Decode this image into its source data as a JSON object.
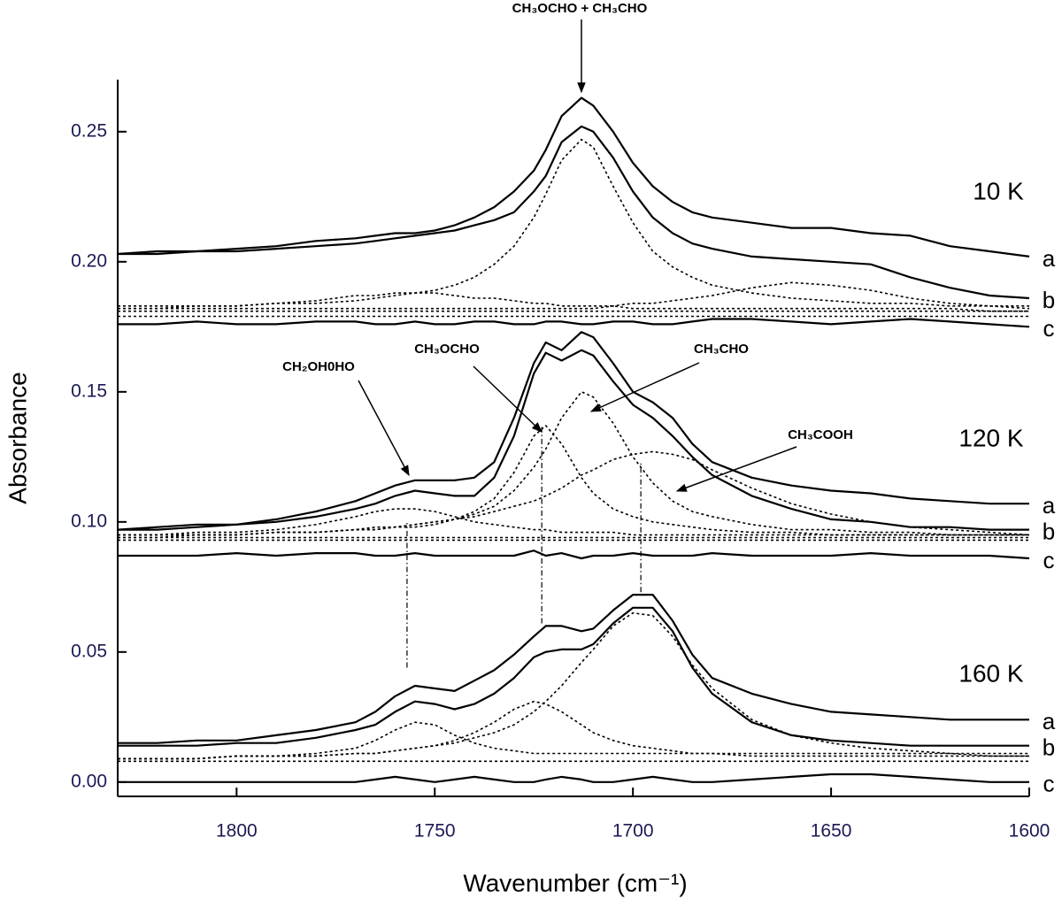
{
  "chart_data": {
    "type": "line",
    "xlabel": "Wavenumber (cm⁻¹)",
    "ylabel": "Absorbance",
    "xlim": [
      1830,
      1600
    ],
    "ylim": [
      -0.0055,
      0.27
    ],
    "xticks": [
      1800,
      1750,
      1700,
      1650,
      1600
    ],
    "yticks": [
      {
        "value": 0,
        "label": "0.00"
      },
      0.05,
      {
        "value": 0.1,
        "label": "0.10"
      },
      0.15,
      {
        "value": 0.2,
        "label": "0.20"
      },
      0.25
    ],
    "x": [
      1830,
      1820,
      1810,
      1800,
      1790,
      1780,
      1770,
      1765,
      1760,
      1755,
      1750,
      1745,
      1740,
      1735,
      1730,
      1725,
      1722,
      1718,
      1713,
      1710,
      1705,
      1700,
      1695,
      1690,
      1685,
      1680,
      1670,
      1660,
      1650,
      1640,
      1630,
      1620,
      1610,
      1600
    ],
    "series": [
      {
        "name": "a",
        "color": "#000000",
        "style": "solid",
        "values": [
          0.203,
          0.204,
          0.204,
          0.205,
          0.206,
          0.208,
          0.209,
          0.21,
          0.211,
          0.211,
          0.212,
          0.214,
          0.217,
          0.221,
          0.227,
          0.235,
          0.243,
          0.256,
          0.263,
          0.26,
          0.25,
          0.238,
          0.229,
          0.223,
          0.219,
          0.217,
          0.215,
          0.213,
          0.213,
          0.211,
          0.21,
          0.206,
          0.204,
          0.202
        ]
      },
      {
        "name": "b",
        "color": "#000000",
        "style": "solid",
        "values": [
          0.203,
          0.203,
          0.204,
          0.204,
          0.205,
          0.206,
          0.207,
          0.208,
          0.209,
          0.21,
          0.211,
          0.212,
          0.214,
          0.216,
          0.219,
          0.227,
          0.233,
          0.246,
          0.252,
          0.25,
          0.24,
          0.227,
          0.217,
          0.211,
          0.207,
          0.205,
          0.202,
          0.201,
          0.2,
          0.199,
          0.194,
          0.19,
          0.187,
          0.186
        ]
      },
      {
        "name": "c",
        "color": "#000000",
        "style": "solid",
        "values": [
          0.176,
          0.176,
          0.177,
          0.176,
          0.176,
          0.177,
          0.177,
          0.176,
          0.176,
          0.177,
          0.176,
          0.176,
          0.177,
          0.177,
          0.176,
          0.176,
          0.177,
          0.177,
          0.176,
          0.176,
          0.177,
          0.177,
          0.176,
          0.176,
          0.177,
          0.178,
          0.178,
          0.177,
          0.176,
          0.177,
          0.178,
          0.177,
          0.176,
          0.175
        ]
      },
      {
        "color": "#000000",
        "style": "dotted",
        "values": [
          0.183,
          0.183,
          0.183,
          0.183,
          0.184,
          0.184,
          0.185,
          0.186,
          0.187,
          0.188,
          0.189,
          0.191,
          0.194,
          0.199,
          0.206,
          0.217,
          0.226,
          0.239,
          0.247,
          0.244,
          0.229,
          0.215,
          0.204,
          0.198,
          0.194,
          0.191,
          0.188,
          0.186,
          0.185,
          0.184,
          0.184,
          0.183,
          0.183,
          0.183
        ]
      },
      {
        "color": "#000000",
        "style": "dotted",
        "values": [
          0.182,
          0.182,
          0.183,
          0.183,
          0.184,
          0.185,
          0.187,
          0.187,
          0.188,
          0.188,
          0.188,
          0.187,
          0.186,
          0.186,
          0.185,
          0.184,
          0.184,
          0.183,
          0.183,
          0.183,
          0.183,
          0.182,
          0.182,
          0.182,
          0.182,
          0.182,
          0.182,
          0.182,
          0.182,
          0.182,
          0.182,
          0.182,
          0.181,
          0.181
        ]
      },
      {
        "color": "#000000",
        "style": "dotted",
        "values": [
          0.182,
          0.182,
          0.182,
          0.182,
          0.182,
          0.182,
          0.182,
          0.182,
          0.182,
          0.182,
          0.182,
          0.182,
          0.182,
          0.182,
          0.182,
          0.182,
          0.182,
          0.182,
          0.182,
          0.182,
          0.183,
          0.184,
          0.184,
          0.185,
          0.186,
          0.187,
          0.19,
          0.192,
          0.191,
          0.189,
          0.186,
          0.184,
          0.183,
          0.182
        ]
      },
      {
        "color": "#000000",
        "style": "dotted",
        "values": [
          0.181,
          0.181,
          0.181,
          0.181,
          0.181,
          0.181,
          0.181,
          0.181,
          0.181,
          0.181,
          0.181,
          0.181,
          0.181,
          0.181,
          0.181,
          0.181,
          0.181,
          0.181,
          0.181,
          0.181,
          0.181,
          0.181,
          0.181,
          0.181,
          0.181,
          0.181,
          0.181,
          0.181,
          0.181,
          0.181,
          0.181,
          0.181,
          0.181,
          0.181
        ]
      },
      {
        "color": "#000000",
        "style": "dotted",
        "values": [
          0.179,
          0.179,
          0.179,
          0.179,
          0.179,
          0.179,
          0.179,
          0.179,
          0.179,
          0.179,
          0.179,
          0.179,
          0.179,
          0.179,
          0.179,
          0.179,
          0.179,
          0.179,
          0.179,
          0.179,
          0.179,
          0.179,
          0.179,
          0.179,
          0.179,
          0.179,
          0.179,
          0.179,
          0.179,
          0.179,
          0.179,
          0.179,
          0.179,
          0.179
        ]
      },
      {
        "name": "a",
        "color": "#000000",
        "style": "solid",
        "values": [
          0.097,
          0.098,
          0.099,
          0.099,
          0.101,
          0.104,
          0.108,
          0.111,
          0.114,
          0.116,
          0.116,
          0.116,
          0.117,
          0.123,
          0.14,
          0.161,
          0.169,
          0.166,
          0.173,
          0.171,
          0.161,
          0.15,
          0.146,
          0.14,
          0.13,
          0.123,
          0.117,
          0.114,
          0.112,
          0.111,
          0.109,
          0.108,
          0.107,
          0.107
        ]
      },
      {
        "name": "b",
        "color": "#000000",
        "style": "solid",
        "values": [
          0.097,
          0.097,
          0.098,
          0.099,
          0.1,
          0.102,
          0.105,
          0.107,
          0.11,
          0.112,
          0.111,
          0.11,
          0.11,
          0.117,
          0.133,
          0.157,
          0.165,
          0.162,
          0.166,
          0.164,
          0.154,
          0.145,
          0.14,
          0.133,
          0.125,
          0.118,
          0.11,
          0.105,
          0.101,
          0.1,
          0.098,
          0.098,
          0.097,
          0.097
        ]
      },
      {
        "name": "c",
        "color": "#000000",
        "style": "solid",
        "values": [
          0.087,
          0.087,
          0.087,
          0.088,
          0.087,
          0.088,
          0.088,
          0.087,
          0.087,
          0.088,
          0.087,
          0.087,
          0.087,
          0.087,
          0.087,
          0.089,
          0.087,
          0.088,
          0.086,
          0.087,
          0.087,
          0.088,
          0.087,
          0.087,
          0.087,
          0.088,
          0.087,
          0.087,
          0.087,
          0.088,
          0.087,
          0.087,
          0.087,
          0.086
        ]
      },
      {
        "color": "#000000",
        "style": "dotted",
        "values": [
          0.095,
          0.095,
          0.096,
          0.096,
          0.097,
          0.099,
          0.102,
          0.104,
          0.105,
          0.105,
          0.104,
          0.102,
          0.1,
          0.099,
          0.098,
          0.097,
          0.097,
          0.096,
          0.096,
          0.096,
          0.096,
          0.095,
          0.095,
          0.095,
          0.095,
          0.095,
          0.095,
          0.095,
          0.095,
          0.095,
          0.095,
          0.095,
          0.095,
          0.095
        ]
      },
      {
        "color": "#000000",
        "style": "dotted",
        "values": [
          0.095,
          0.095,
          0.095,
          0.095,
          0.096,
          0.096,
          0.097,
          0.097,
          0.098,
          0.098,
          0.099,
          0.101,
          0.104,
          0.109,
          0.119,
          0.133,
          0.137,
          0.13,
          0.117,
          0.111,
          0.105,
          0.102,
          0.1,
          0.099,
          0.098,
          0.097,
          0.096,
          0.096,
          0.095,
          0.095,
          0.095,
          0.095,
          0.095,
          0.095
        ]
      },
      {
        "color": "#000000",
        "style": "dotted",
        "values": [
          0.095,
          0.095,
          0.095,
          0.095,
          0.096,
          0.096,
          0.097,
          0.097,
          0.098,
          0.099,
          0.1,
          0.101,
          0.103,
          0.106,
          0.112,
          0.121,
          0.128,
          0.14,
          0.15,
          0.148,
          0.138,
          0.125,
          0.115,
          0.108,
          0.104,
          0.102,
          0.099,
          0.097,
          0.097,
          0.096,
          0.096,
          0.095,
          0.095,
          0.095
        ]
      },
      {
        "color": "#000000",
        "style": "dotted",
        "values": [
          0.094,
          0.094,
          0.095,
          0.095,
          0.096,
          0.096,
          0.097,
          0.098,
          0.098,
          0.099,
          0.1,
          0.101,
          0.102,
          0.104,
          0.106,
          0.108,
          0.11,
          0.113,
          0.118,
          0.12,
          0.124,
          0.126,
          0.127,
          0.126,
          0.124,
          0.12,
          0.113,
          0.107,
          0.103,
          0.1,
          0.098,
          0.097,
          0.096,
          0.095
        ]
      },
      {
        "color": "#000000",
        "style": "dotted",
        "values": [
          0.094,
          0.094,
          0.094,
          0.094,
          0.094,
          0.094,
          0.094,
          0.094,
          0.094,
          0.094,
          0.094,
          0.094,
          0.094,
          0.094,
          0.094,
          0.094,
          0.094,
          0.094,
          0.094,
          0.094,
          0.094,
          0.094,
          0.094,
          0.094,
          0.094,
          0.094,
          0.094,
          0.094,
          0.094,
          0.094,
          0.094,
          0.094,
          0.094,
          0.094
        ]
      },
      {
        "color": "#000000",
        "style": "dotted",
        "values": [
          0.093,
          0.093,
          0.093,
          0.093,
          0.093,
          0.093,
          0.093,
          0.093,
          0.093,
          0.093,
          0.093,
          0.093,
          0.093,
          0.093,
          0.093,
          0.093,
          0.093,
          0.093,
          0.093,
          0.093,
          0.093,
          0.093,
          0.093,
          0.093,
          0.093,
          0.093,
          0.093,
          0.093,
          0.093,
          0.093,
          0.093,
          0.093,
          0.093,
          0.093
        ]
      },
      {
        "name": "a",
        "color": "#000000",
        "style": "solid",
        "values": [
          0.015,
          0.015,
          0.016,
          0.016,
          0.018,
          0.02,
          0.023,
          0.027,
          0.033,
          0.037,
          0.036,
          0.035,
          0.039,
          0.043,
          0.049,
          0.056,
          0.06,
          0.06,
          0.058,
          0.059,
          0.066,
          0.072,
          0.072,
          0.062,
          0.049,
          0.04,
          0.034,
          0.03,
          0.027,
          0.026,
          0.025,
          0.024,
          0.024,
          0.024
        ]
      },
      {
        "name": "b",
        "color": "#000000",
        "style": "solid",
        "values": [
          0.014,
          0.014,
          0.014,
          0.015,
          0.015,
          0.017,
          0.02,
          0.022,
          0.027,
          0.031,
          0.03,
          0.028,
          0.03,
          0.034,
          0.04,
          0.048,
          0.05,
          0.051,
          0.051,
          0.053,
          0.061,
          0.067,
          0.067,
          0.058,
          0.044,
          0.034,
          0.023,
          0.018,
          0.016,
          0.015,
          0.014,
          0.014,
          0.014,
          0.014
        ]
      },
      {
        "name": "c",
        "color": "#000000",
        "style": "solid",
        "values": [
          0.0,
          0.0,
          0.0,
          0.0,
          0.0,
          0.0,
          0.0,
          0.001,
          0.002,
          0.001,
          0.0,
          0.001,
          0.002,
          0.001,
          0.0,
          0.0,
          0.001,
          0.002,
          0.001,
          0.0,
          0.0,
          0.001,
          0.002,
          0.001,
          0.0,
          0.0,
          0.001,
          0.002,
          0.003,
          0.003,
          0.002,
          0.001,
          0.0,
          0.0
        ]
      },
      {
        "color": "#000000",
        "style": "dotted",
        "values": [
          0.009,
          0.009,
          0.009,
          0.01,
          0.01,
          0.011,
          0.013,
          0.016,
          0.02,
          0.023,
          0.022,
          0.018,
          0.015,
          0.013,
          0.012,
          0.011,
          0.011,
          0.011,
          0.011,
          0.011,
          0.011,
          0.011,
          0.011,
          0.011,
          0.011,
          0.011,
          0.011,
          0.011,
          0.011,
          0.011,
          0.011,
          0.011,
          0.011,
          0.011
        ]
      },
      {
        "color": "#000000",
        "style": "dotted",
        "values": [
          0.009,
          0.009,
          0.009,
          0.01,
          0.01,
          0.01,
          0.011,
          0.011,
          0.012,
          0.013,
          0.014,
          0.016,
          0.019,
          0.023,
          0.028,
          0.031,
          0.03,
          0.027,
          0.022,
          0.019,
          0.016,
          0.014,
          0.013,
          0.012,
          0.011,
          0.011,
          0.01,
          0.01,
          0.01,
          0.01,
          0.01,
          0.01,
          0.01,
          0.01
        ]
      },
      {
        "color": "#000000",
        "style": "dotted",
        "values": [
          0.009,
          0.009,
          0.009,
          0.01,
          0.01,
          0.01,
          0.011,
          0.011,
          0.012,
          0.013,
          0.014,
          0.015,
          0.017,
          0.019,
          0.022,
          0.027,
          0.031,
          0.037,
          0.046,
          0.051,
          0.06,
          0.065,
          0.064,
          0.056,
          0.045,
          0.036,
          0.024,
          0.018,
          0.015,
          0.013,
          0.012,
          0.011,
          0.01,
          0.01
        ]
      },
      {
        "color": "#000000",
        "style": "dotted",
        "values": [
          0.008,
          0.008,
          0.008,
          0.008,
          0.008,
          0.008,
          0.008,
          0.008,
          0.008,
          0.008,
          0.008,
          0.008,
          0.008,
          0.008,
          0.008,
          0.008,
          0.008,
          0.008,
          0.008,
          0.008,
          0.008,
          0.008,
          0.008,
          0.008,
          0.008,
          0.008,
          0.008,
          0.008,
          0.008,
          0.008,
          0.008,
          0.008,
          0.008,
          0.008
        ]
      }
    ],
    "guides": [
      {
        "x": 1757,
        "y": [
          0.044,
          0.0996
        ]
      },
      {
        "x": 1723,
        "y": [
          0.061,
          0.137
        ]
      },
      {
        "x": 1698,
        "y": [
          0.073,
          0.123
        ]
      }
    ],
    "panel_labels": [
      "10 K",
      "120 K",
      "160 K"
    ],
    "annotations": [
      "CH₃OCHO + CH₃CHO",
      "CH₂OH0HO",
      "CH₃OCHO",
      "CH₃CHO",
      "CH₃COOH"
    ]
  }
}
